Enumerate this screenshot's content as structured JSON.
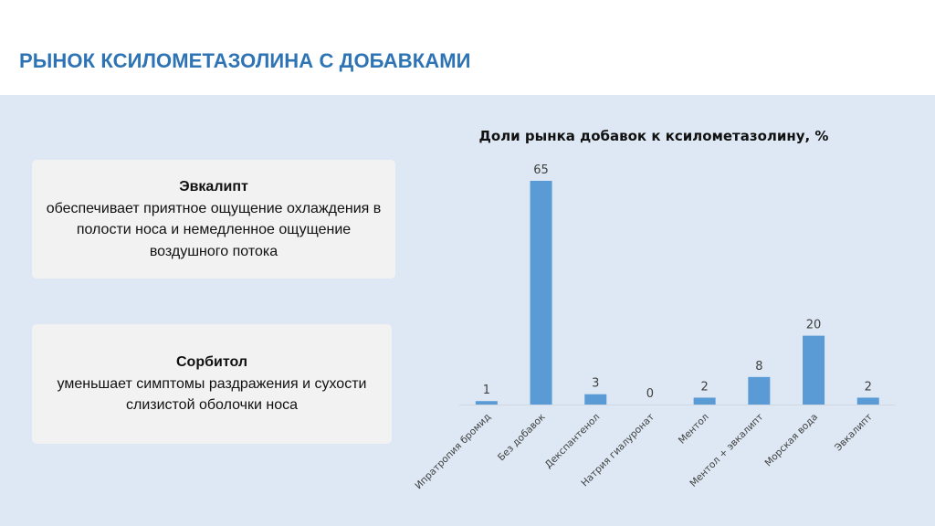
{
  "slide": {
    "title": "РЫНОК КСИЛОМЕТАЗОЛИНА С ДОБАВКАМИ"
  },
  "cards": [
    {
      "title": "Эвкалипт",
      "text": "обеспечивает приятное ощущение охлаждения в\nполости носа и немедленное ощущение\nвоздушного потока"
    },
    {
      "title": "Сорбитол",
      "text": "уменьшает симптомы раздражения и сухости\nслизистой оболочки носа"
    }
  ],
  "chart_data": {
    "type": "bar",
    "title": "Доли рынка добавок к ксилометазолину, %",
    "categories": [
      "Ипратропия бромид",
      "Без добавок",
      "Декспантенол",
      "Натрия гиалуронат",
      "Ментол",
      "Ментол + эвкалипт",
      "Морская вода",
      "Эвкалипт"
    ],
    "values": [
      1,
      65,
      3,
      0,
      2,
      8,
      20,
      2
    ],
    "data_labels": [
      "1",
      "65",
      "3",
      "0",
      "2",
      "8",
      "20",
      "2"
    ],
    "ylim": [
      0,
      65
    ],
    "xlabel": "",
    "ylabel": "",
    "grid": false,
    "bar_color": "#5b9bd5",
    "label_color": "#404040"
  },
  "colors": {
    "title": "#2e74b5",
    "panel_background": "#dde8f4",
    "card_background": "#f2f2f2"
  }
}
